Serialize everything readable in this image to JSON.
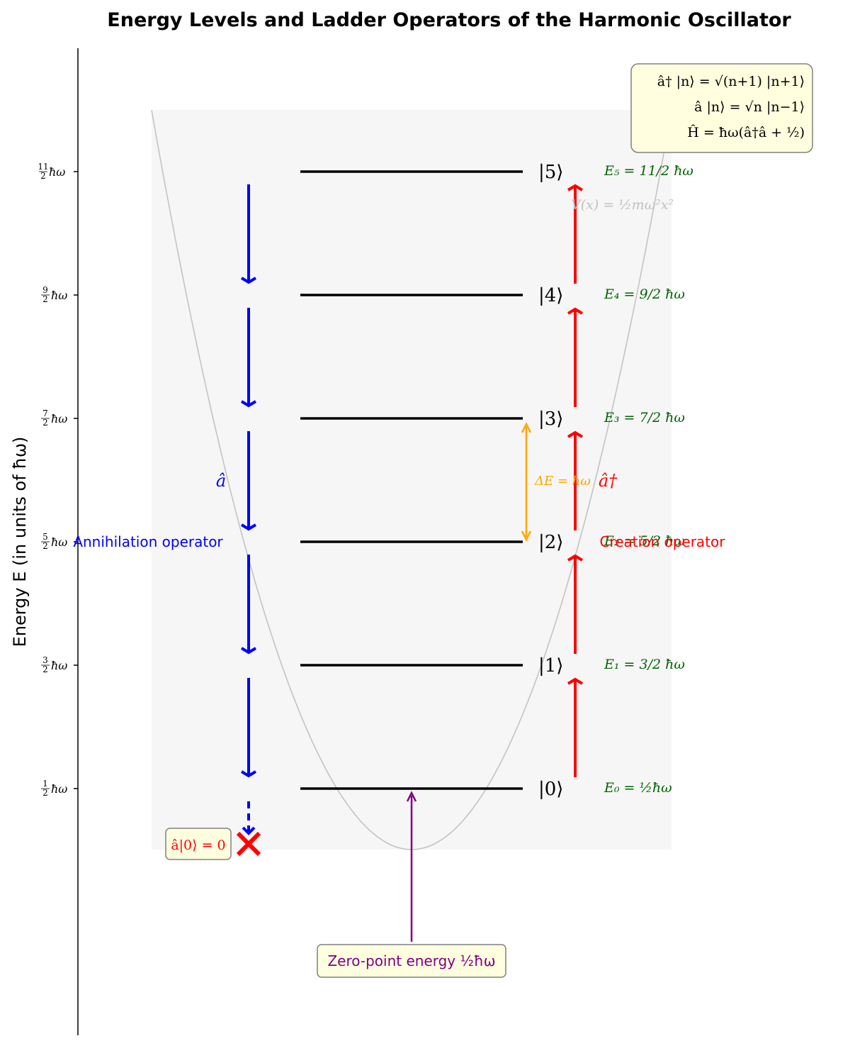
{
  "title": "Energy Levels and Ladder Operators of the Harmonic Oscillator",
  "y_axis": {
    "label": "Energy E (in units of ħω)",
    "ticks": [
      {
        "num": "1",
        "den": "2",
        "unit": "ħω"
      },
      {
        "num": "3",
        "den": "2",
        "unit": "ħω"
      },
      {
        "num": "5",
        "den": "2",
        "unit": "ħω"
      },
      {
        "num": "7",
        "den": "2",
        "unit": "ħω"
      },
      {
        "num": "9",
        "den": "2",
        "unit": "ħω"
      },
      {
        "num": "11",
        "den": "2",
        "unit": "ħω"
      }
    ]
  },
  "levels": [
    {
      "ket": "|0⟩",
      "energy_label": "E₀ = ½ħω",
      "energy": 0.5
    },
    {
      "ket": "|1⟩",
      "energy_label": "E₁ = 3/2 ħω",
      "energy": 1.5
    },
    {
      "ket": "|2⟩",
      "energy_label": "E₂ = 5/2 ħω",
      "energy": 2.5
    },
    {
      "ket": "|3⟩",
      "energy_label": "E₃ = 7/2 ħω",
      "energy": 3.5
    },
    {
      "ket": "|4⟩",
      "energy_label": "E₄ = 9/2 ħω",
      "energy": 4.5
    },
    {
      "ket": "|5⟩",
      "energy_label": "E₅ = 11/2 ħω",
      "energy": 5.5
    }
  ],
  "potential_label": "V(x) = ½mω²x²",
  "annihilation": {
    "symbol": "â",
    "label": "Annihilation operator"
  },
  "creation": {
    "symbol": "â†",
    "label": "Creation operator"
  },
  "delta_e": "ΔE = ħω",
  "ground_annihilation": "â|0⟩ = 0",
  "zero_point": "Zero-point energy ½ħω",
  "equations": [
    "â† |n⟩ = √(n+1) |n+1⟩",
    "â |n⟩ = √n |n−1⟩",
    "Ĥ = ħω(â†â + ½)"
  ],
  "colors": {
    "level": "#000000",
    "annihilation": "#0000ff",
    "creation": "#ff0000",
    "energy_text": "#006400",
    "delta": "#ffa500",
    "zero_point": "#800080",
    "potential": "#c0c0c0",
    "well_fill": "#f6f6f6",
    "box_fill": "#ffffe0",
    "box_border": "#808080"
  }
}
